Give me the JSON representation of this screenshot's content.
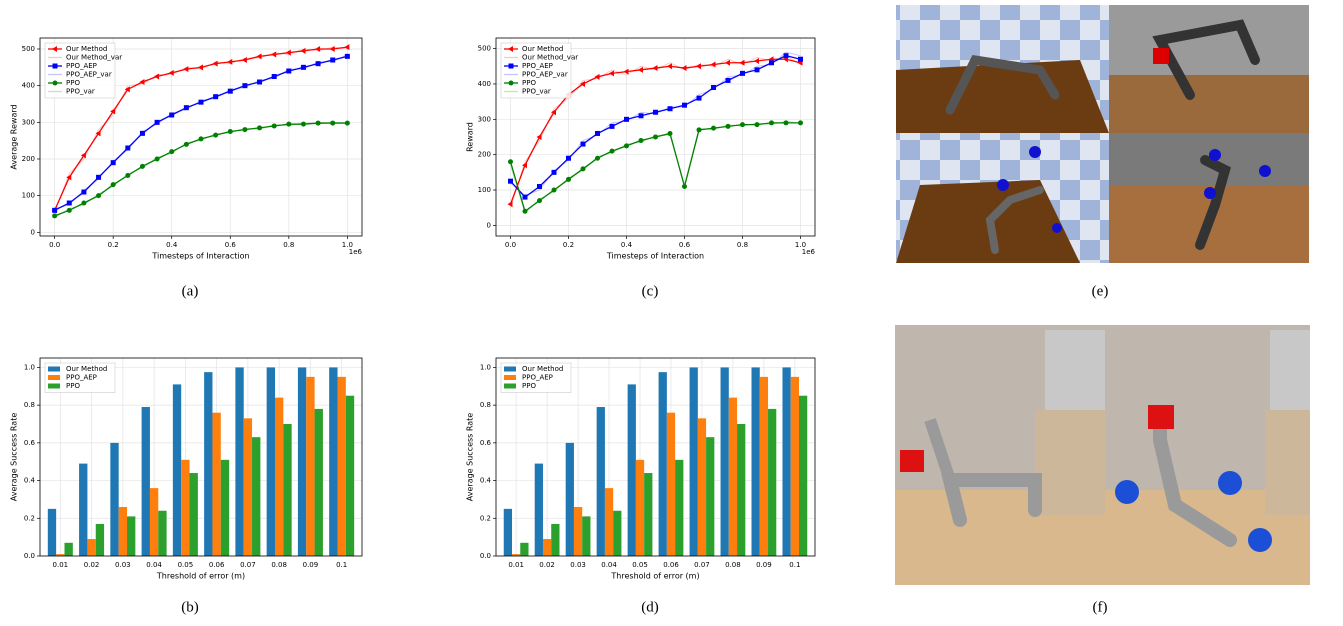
{
  "chart_data": [
    {
      "type": "line",
      "caption": "(a)",
      "xlabel": "Timesteps of Interaction",
      "ylabel": "Average Reward",
      "x_offset_label": "1e6",
      "x": [
        0,
        0.05,
        0.1,
        0.15,
        0.2,
        0.25,
        0.3,
        0.35,
        0.4,
        0.45,
        0.5,
        0.55,
        0.6,
        0.65,
        0.7,
        0.75,
        0.8,
        0.85,
        0.9,
        0.95,
        1.0
      ],
      "xlim": [
        -0.05,
        1.05
      ],
      "xticks": [
        {
          "value": 0,
          "label": "0.0"
        },
        0.2,
        0.4,
        0.6,
        0.8,
        {
          "value": 1,
          "label": "1.0"
        }
      ],
      "ylim": [
        -10,
        530
      ],
      "yticks": [
        0,
        100,
        200,
        300,
        400,
        500
      ],
      "grid": true,
      "legend": "upper-left",
      "series": [
        {
          "name": "Our Method",
          "color": "#ff0000",
          "marker": "triangle",
          "values": [
            60,
            150,
            210,
            270,
            330,
            390,
            410,
            425,
            435,
            445,
            450,
            460,
            465,
            470,
            480,
            485,
            490,
            495,
            500,
            500,
            505
          ]
        },
        {
          "name": "Our Method_var",
          "color": "#ffc4c4",
          "values": [
            55,
            160,
            200,
            280,
            320,
            400,
            405,
            430,
            430,
            450,
            445,
            465,
            460,
            475,
            475,
            490,
            485,
            500,
            495,
            505,
            500
          ]
        },
        {
          "name": "PPO_AEP",
          "color": "#0000ff",
          "marker": "square",
          "values": [
            60,
            80,
            110,
            150,
            190,
            230,
            270,
            300,
            320,
            340,
            355,
            370,
            385,
            400,
            410,
            425,
            440,
            450,
            460,
            470,
            480
          ]
        },
        {
          "name": "PPO_AEP_var",
          "color": "#c4c4ff",
          "values": [
            65,
            75,
            115,
            145,
            195,
            225,
            275,
            295,
            325,
            335,
            360,
            365,
            390,
            395,
            415,
            420,
            445,
            445,
            465,
            465,
            485
          ]
        },
        {
          "name": "PPO",
          "color": "#008000",
          "marker": "circle",
          "values": [
            45,
            60,
            80,
            100,
            130,
            155,
            180,
            200,
            220,
            240,
            255,
            265,
            275,
            280,
            285,
            290,
            295,
            295,
            298,
            298,
            298
          ]
        },
        {
          "name": "PPO_var",
          "color": "#bfe3bf",
          "values": [
            40,
            65,
            75,
            105,
            125,
            160,
            175,
            205,
            215,
            245,
            250,
            270,
            270,
            285,
            280,
            295,
            290,
            300,
            295,
            300,
            297
          ]
        }
      ]
    },
    {
      "type": "line",
      "caption": "(c)",
      "xlabel": "Timesteps of Interaction",
      "ylabel": "Reward",
      "x_offset_label": "1e6",
      "x": [
        0,
        0.05,
        0.1,
        0.15,
        0.2,
        0.25,
        0.3,
        0.35,
        0.4,
        0.45,
        0.5,
        0.55,
        0.6,
        0.65,
        0.7,
        0.75,
        0.8,
        0.85,
        0.9,
        0.95,
        1.0
      ],
      "xlim": [
        -0.05,
        1.05
      ],
      "xticks": [
        {
          "value": 0,
          "label": "0.0"
        },
        0.2,
        0.4,
        0.6,
        0.8,
        {
          "value": 1,
          "label": "1.0"
        }
      ],
      "ylim": [
        -30,
        530
      ],
      "yticks": [
        0,
        100,
        200,
        300,
        400,
        500
      ],
      "grid": true,
      "legend": "upper-left",
      "series": [
        {
          "name": "Our Method",
          "color": "#ff0000",
          "marker": "triangle",
          "values": [
            60,
            170,
            250,
            320,
            370,
            400,
            420,
            430,
            435,
            440,
            445,
            450,
            445,
            450,
            455,
            460,
            460,
            465,
            470,
            470,
            460
          ]
        },
        {
          "name": "Our Method_var",
          "color": "#ffc4c4",
          "values": [
            50,
            180,
            240,
            330,
            360,
            410,
            415,
            440,
            425,
            450,
            440,
            460,
            440,
            455,
            450,
            470,
            455,
            475,
            465,
            480,
            455
          ]
        },
        {
          "name": "PPO_AEP",
          "color": "#0000ff",
          "marker": "square",
          "values": [
            125,
            80,
            110,
            150,
            190,
            230,
            260,
            280,
            300,
            310,
            320,
            330,
            340,
            360,
            390,
            410,
            430,
            440,
            460,
            480,
            470
          ]
        },
        {
          "name": "PPO_AEP_var",
          "color": "#c4c4ff",
          "values": [
            120,
            85,
            100,
            155,
            185,
            240,
            255,
            290,
            295,
            320,
            315,
            335,
            335,
            370,
            385,
            420,
            425,
            450,
            455,
            490,
            480
          ]
        },
        {
          "name": "PPO",
          "color": "#008000",
          "marker": "circle",
          "values": [
            180,
            40,
            70,
            100,
            130,
            160,
            190,
            210,
            225,
            240,
            250,
            260,
            110,
            270,
            275,
            280,
            285,
            285,
            290,
            290,
            290
          ]
        },
        {
          "name": "PPO_var",
          "color": "#bfe3bf",
          "values": [
            170,
            35,
            75,
            95,
            135,
            155,
            195,
            205,
            230,
            235,
            255,
            255,
            115,
            275,
            270,
            285,
            280,
            290,
            285,
            295,
            288
          ]
        }
      ]
    },
    {
      "type": "bar",
      "caption": "(b)",
      "xlabel": "Threshold of error (m)",
      "ylabel": "Average Success Rate",
      "categories": [
        "0.01",
        "0.02",
        "0.03",
        "0.04",
        "0.05",
        "0.06",
        "0.07",
        "0.08",
        "0.09",
        "0.1"
      ],
      "ylim": [
        0,
        1.05
      ],
      "yticks": [
        {
          "value": 0,
          "label": "0.0"
        },
        0.2,
        0.4,
        0.6,
        0.8,
        {
          "value": 1,
          "label": "1.0"
        }
      ],
      "grid": true,
      "legend": "upper-left",
      "series": [
        {
          "name": "Our Method",
          "color": "#1f77b4",
          "values": [
            0.25,
            0.49,
            0.6,
            0.79,
            0.91,
            0.975,
            1.0,
            1.0,
            1.0,
            1.0
          ]
        },
        {
          "name": "PPO_AEP",
          "color": "#ff7f0e",
          "values": [
            0.01,
            0.09,
            0.26,
            0.36,
            0.51,
            0.76,
            0.73,
            0.84,
            0.95,
            0.95
          ]
        },
        {
          "name": "PPO",
          "color": "#2ca02c",
          "values": [
            0.07,
            0.17,
            0.21,
            0.24,
            0.44,
            0.51,
            0.63,
            0.7,
            0.78,
            0.85
          ]
        }
      ]
    },
    {
      "type": "bar",
      "caption": "(d)",
      "xlabel": "Threshold of error (m)",
      "ylabel": "Average Success Rate",
      "categories": [
        "0.01",
        "0.02",
        "0.03",
        "0.04",
        "0.05",
        "0.06",
        "0.07",
        "0.08",
        "0.09",
        "0.1"
      ],
      "ylim": [
        0,
        1.05
      ],
      "yticks": [
        {
          "value": 0,
          "label": "0.0"
        },
        0.2,
        0.4,
        0.6,
        0.8,
        {
          "value": 1,
          "label": "1.0"
        }
      ],
      "grid": true,
      "legend": "upper-left",
      "series": [
        {
          "name": "Our Method",
          "color": "#1f77b4",
          "values": [
            0.25,
            0.49,
            0.6,
            0.79,
            0.91,
            0.975,
            1.0,
            1.0,
            1.0,
            1.0
          ]
        },
        {
          "name": "PPO_AEP",
          "color": "#ff7f0e",
          "values": [
            0.01,
            0.09,
            0.26,
            0.36,
            0.51,
            0.76,
            0.73,
            0.84,
            0.95,
            0.95
          ]
        },
        {
          "name": "PPO",
          "color": "#2ca02c",
          "values": [
            0.07,
            0.17,
            0.21,
            0.24,
            0.44,
            0.51,
            0.63,
            0.7,
            0.78,
            0.85
          ]
        }
      ]
    }
  ],
  "images": [
    {
      "caption": "(e)"
    },
    {
      "caption": "(f)"
    }
  ]
}
